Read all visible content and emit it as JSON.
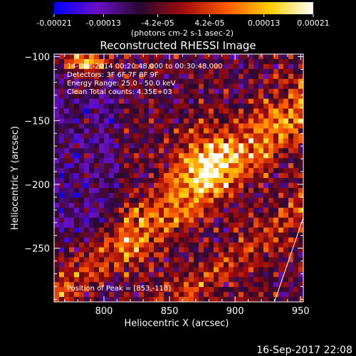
{
  "chart_data": {
    "type": "heatmap",
    "title": "Reconstructed RHESSI Image",
    "xlabel": "Heliocentric X (arcsec)",
    "ylabel": "Heliocentric Y (arcsec)",
    "xlim": [
      762,
      952
    ],
    "ylim": [
      -292,
      -98
    ],
    "x_ticks": [
      800,
      850,
      900,
      950
    ],
    "y_ticks": [
      -100,
      -150,
      -200,
      -250
    ],
    "colorbar": {
      "range": [
        -0.00021,
        0.00021
      ],
      "ticks": [
        "-0.00021",
        "-0.00013",
        "-4.2e-05",
        "4.2e-05",
        "0.00013",
        "0.00021"
      ],
      "unit_label": "(photons cm-2 s-1 asec-2)",
      "colors": [
        "#0000ff",
        "#6a10c8",
        "#2a0830",
        "#a00c0c",
        "#ff5a00",
        "#ffd000",
        "#ffffff"
      ]
    },
    "info_lines": [
      "14-Dec-2014 00:20:48.000 to 00:30:48.000",
      "Detectors: 3F 6F 7F 8F 9F",
      "Energy Range: 25.0 - 50.0 keV",
      "Clean    Total counts: 4.35E+03"
    ],
    "peak_label": "Position of Peak = [853,-118]",
    "peak": [
      853,
      -118
    ],
    "limb_line": [
      [
        930,
        -292
      ],
      [
        952,
        -226
      ]
    ],
    "timestamp": "16-Sep-2017 22:08"
  }
}
